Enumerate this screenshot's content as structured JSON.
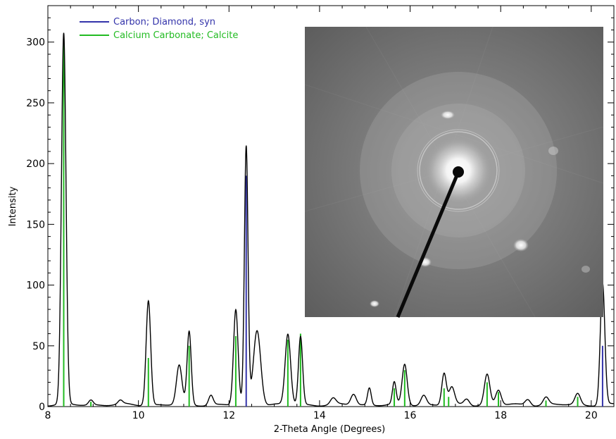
{
  "chart_data": {
    "type": "line",
    "xlabel": "2-Theta Angle (Degrees)",
    "ylabel": "Intensity",
    "xlim": [
      8,
      20.5
    ],
    "ylim": [
      0,
      330
    ],
    "x_ticks": [
      8,
      10,
      12,
      14,
      16,
      18,
      20
    ],
    "y_ticks": [
      0,
      50,
      100,
      150,
      200,
      250,
      300
    ],
    "legend_position": "top-left",
    "grid": false,
    "colors": {
      "pattern": "#000000",
      "diamond": "#3333aa",
      "calcite": "#22bb22"
    },
    "legend": [
      {
        "label": "Carbon; Diamond, syn",
        "color": "#3333aa"
      },
      {
        "label": "Calcium Carbonate; Calcite",
        "color": "#22bb22"
      }
    ],
    "peaks": [
      {
        "x": 8.35,
        "y": 305,
        "w": 0.05
      },
      {
        "x": 8.95,
        "y": 4,
        "w": 0.05
      },
      {
        "x": 9.6,
        "y": 3,
        "w": 0.05
      },
      {
        "x": 10.22,
        "y": 86,
        "w": 0.05
      },
      {
        "x": 10.9,
        "y": 32,
        "w": 0.06
      },
      {
        "x": 11.12,
        "y": 60,
        "w": 0.045
      },
      {
        "x": 11.6,
        "y": 8,
        "w": 0.05
      },
      {
        "x": 12.15,
        "y": 78,
        "w": 0.05
      },
      {
        "x": 12.38,
        "y": 212,
        "w": 0.04
      },
      {
        "x": 12.62,
        "y": 62,
        "w": 0.08
      },
      {
        "x": 13.3,
        "y": 58,
        "w": 0.06
      },
      {
        "x": 13.58,
        "y": 56,
        "w": 0.045
      },
      {
        "x": 14.3,
        "y": 5,
        "w": 0.06
      },
      {
        "x": 14.75,
        "y": 9,
        "w": 0.06
      },
      {
        "x": 15.1,
        "y": 14,
        "w": 0.04
      },
      {
        "x": 15.65,
        "y": 18,
        "w": 0.04
      },
      {
        "x": 15.88,
        "y": 33,
        "w": 0.055
      },
      {
        "x": 16.3,
        "y": 8,
        "w": 0.06
      },
      {
        "x": 16.75,
        "y": 26,
        "w": 0.05
      },
      {
        "x": 16.92,
        "y": 14,
        "w": 0.06
      },
      {
        "x": 17.25,
        "y": 5,
        "w": 0.06
      },
      {
        "x": 17.7,
        "y": 25,
        "w": 0.06
      },
      {
        "x": 17.95,
        "y": 12,
        "w": 0.06
      },
      {
        "x": 18.6,
        "y": 5,
        "w": 0.06
      },
      {
        "x": 19.0,
        "y": 6,
        "w": 0.06
      },
      {
        "x": 19.7,
        "y": 9,
        "w": 0.06
      },
      {
        "x": 20.25,
        "y": 100,
        "w": 0.05
      }
    ],
    "reference_lines": {
      "diamond": [
        {
          "x": 12.38,
          "y": 190
        },
        {
          "x": 20.25,
          "y": 50
        }
      ],
      "calcite": [
        {
          "x": 8.35,
          "y": 305
        },
        {
          "x": 8.95,
          "y": 4
        },
        {
          "x": 10.22,
          "y": 40
        },
        {
          "x": 11.12,
          "y": 50
        },
        {
          "x": 12.15,
          "y": 58
        },
        {
          "x": 13.3,
          "y": 55
        },
        {
          "x": 13.58,
          "y": 60
        },
        {
          "x": 15.65,
          "y": 15
        },
        {
          "x": 15.88,
          "y": 30
        },
        {
          "x": 16.75,
          "y": 15
        },
        {
          "x": 16.85,
          "y": 8
        },
        {
          "x": 17.7,
          "y": 20
        },
        {
          "x": 17.95,
          "y": 12
        },
        {
          "x": 19.0,
          "y": 5
        },
        {
          "x": 19.7,
          "y": 8
        }
      ]
    }
  }
}
